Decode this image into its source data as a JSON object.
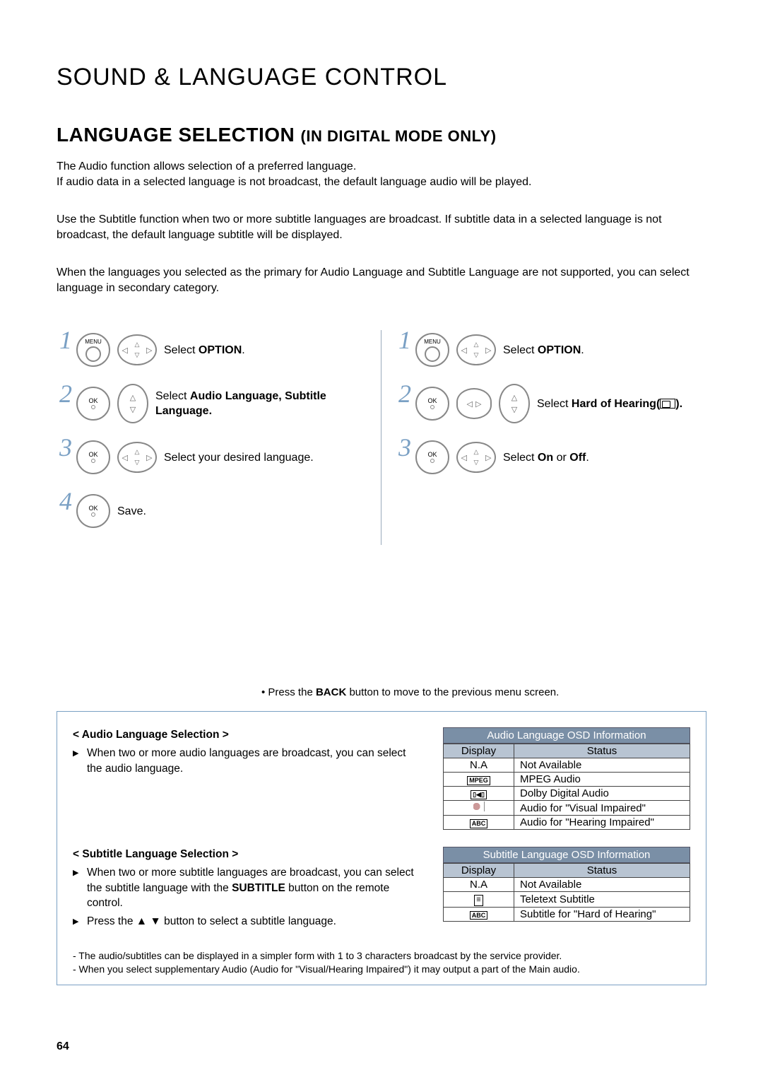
{
  "page_number": "64",
  "h1": "SOUND & LANGUAGE CONTROL",
  "h2_main": "LANGUAGE SELECTION ",
  "h2_sub": "(IN DIGITAL MODE ONLY)",
  "intro": {
    "p1a": "The Audio function allows selection of a preferred language.",
    "p1b": "If audio data in a selected language is not broadcast, the default language audio will be played.",
    "p2": "Use the Subtitle function when two or more subtitle languages are broadcast. If subtitle data in a selected language is not broadcast, the default language subtitle will be displayed.",
    "p3": "When the languages you selected as the primary for Audio Language and Subtitle Language are not supported, you can select language in secondary category."
  },
  "left_steps": {
    "s1": {
      "pre": "Select ",
      "bold": "OPTION",
      "post": "."
    },
    "s2": {
      "pre": "Select ",
      "bold": "Audio Language, Subtitle Language."
    },
    "s3": "Select your desired language.",
    "s4": "Save."
  },
  "right_steps": {
    "s1": {
      "pre": "Select ",
      "bold": "OPTION",
      "post": "."
    },
    "s2": {
      "pre": "Select ",
      "bold": "Hard of Hearing(",
      "post": ")."
    },
    "s3": {
      "pre": "Select ",
      "bold1": "On",
      "mid": " or ",
      "bold2": "Off",
      "post": "."
    }
  },
  "back_note": {
    "pre": "• Press the ",
    "bold": "BACK",
    "post": " button to move to the previous menu screen."
  },
  "box": {
    "audio_hdg": "< Audio Language Selection >",
    "audio_txt": "When two or more audio languages are broadcast, you can select the audio language.",
    "sub_hdg": "< Subtitle Language Selection >",
    "sub_txt1_pre": "When two or more subtitle languages are broadcast, you can select the subtitle language with the ",
    "sub_txt1_bold": "SUBTITLE",
    "sub_txt1_post": " button on the remote control.",
    "sub_txt2": "Press the ▲ ▼ button to select a subtitle language.",
    "audio_tbl_title": "Audio Language OSD Information",
    "sub_tbl_title": "Subtitle Language OSD Information",
    "th_display": "Display",
    "th_status": "Status",
    "audio_rows": [
      {
        "disp": "N.A",
        "status": "Not Available",
        "icon": "text"
      },
      {
        "disp": "MPEG",
        "status": "MPEG Audio",
        "icon": "box"
      },
      {
        "disp": "▯◀▯",
        "status": "Dolby Digital Audio",
        "icon": "box"
      },
      {
        "disp": "ear",
        "status": "Audio for \"Visual Impaired\"",
        "icon": "ear"
      },
      {
        "disp": "ABC",
        "status": "Audio for \"Hearing Impaired\"",
        "icon": "box"
      }
    ],
    "sub_rows": [
      {
        "disp": "N.A",
        "status": "Not Available",
        "icon": "text"
      },
      {
        "disp": "≡",
        "status": "Teletext Subtitle",
        "icon": "boxsym"
      },
      {
        "disp": "ABC",
        "status": "Subtitle for \"Hard of Hearing\"",
        "icon": "box"
      }
    ],
    "foot1": "- The audio/subtitles can be displayed in a simpler form with 1 to 3 characters broadcast by the service provider.",
    "foot2": "- When you select supplementary Audio (Audio for \"Visual/Hearing Impaired\") it may output a part of the Main audio."
  },
  "labels": {
    "menu": "MENU",
    "ok": "OK"
  }
}
